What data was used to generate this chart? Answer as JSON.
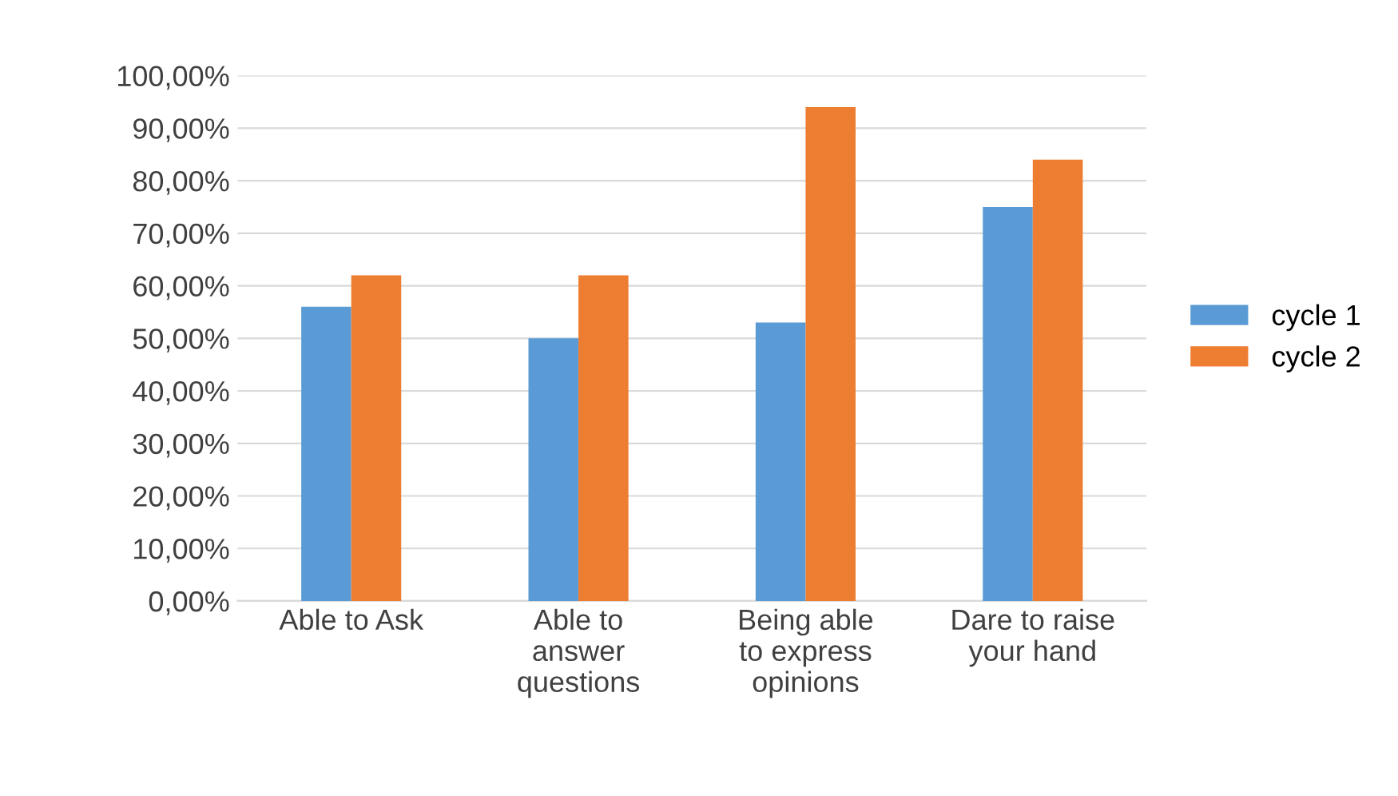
{
  "chart_data": {
    "type": "bar",
    "categories": [
      "Able to Ask",
      "Able to\nanswer\nquestions",
      "Being able\nto express\nopinions",
      "Dare to raise\nyour hand"
    ],
    "series": [
      {
        "name": "cycle 1",
        "color": "#5b9bd5",
        "values": [
          56,
          50,
          53,
          75
        ]
      },
      {
        "name": "cycle 2",
        "color": "#ed7d31",
        "values": [
          62,
          62,
          94,
          84
        ]
      }
    ],
    "ylim": [
      0,
      100
    ],
    "yticks": [
      {
        "value": 0,
        "label": "0,00%"
      },
      {
        "value": 10,
        "label": "10,00%"
      },
      {
        "value": 20,
        "label": "20,00%"
      },
      {
        "value": 30,
        "label": "30,00%"
      },
      {
        "value": 40,
        "label": "40,00%"
      },
      {
        "value": 50,
        "label": "50,00%"
      },
      {
        "value": 60,
        "label": "60,00%"
      },
      {
        "value": 70,
        "label": "70,00%"
      },
      {
        "value": 80,
        "label": "80,00%"
      },
      {
        "value": 90,
        "label": "90,00%"
      },
      {
        "value": 100,
        "label": "100,00%"
      }
    ],
    "grid": "y",
    "legend": "right"
  }
}
